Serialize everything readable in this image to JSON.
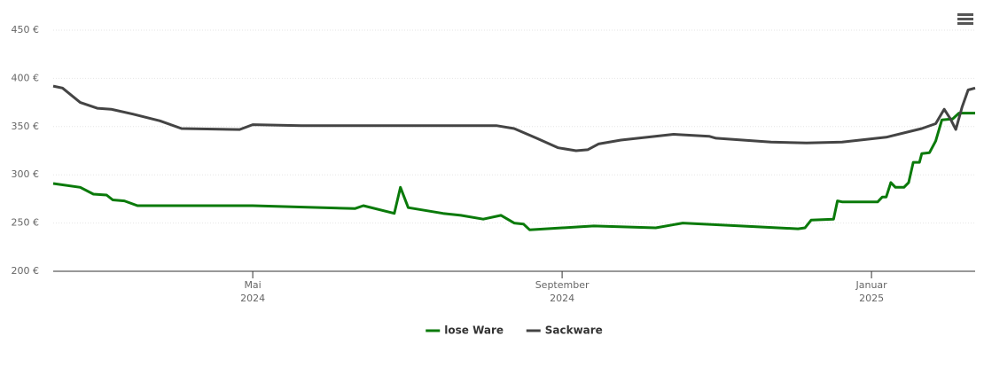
{
  "chart_data": {
    "type": "line",
    "xlim": [
      1.42,
      13.34
    ],
    "xticks": [
      {
        "value": 4,
        "label": "Mai",
        "year": "2024"
      },
      {
        "value": 8,
        "label": "September",
        "year": "2024"
      },
      {
        "value": 12,
        "label": "Januar",
        "year": "2025"
      }
    ],
    "ylim": [
      200,
      450
    ],
    "yticks": [
      {
        "value": 200,
        "label": "200 €"
      },
      {
        "value": 250,
        "label": "250 €"
      },
      {
        "value": 300,
        "label": "300 €"
      },
      {
        "value": 350,
        "label": "350 €"
      },
      {
        "value": 400,
        "label": "400 €"
      },
      {
        "value": 450,
        "label": "450 €"
      }
    ],
    "grid": true,
    "legend": "bottom",
    "series": [
      {
        "name": "lose Ware",
        "color": "#0a7a0a",
        "x": [
          1.42,
          1.77,
          1.94,
          2.11,
          2.19,
          2.34,
          2.51,
          4.0,
          5.32,
          5.43,
          5.83,
          5.91,
          6.01,
          6.46,
          6.69,
          6.98,
          7.21,
          7.38,
          7.5,
          7.58,
          8.0,
          8.41,
          9.21,
          9.56,
          11.05,
          11.14,
          11.22,
          11.51,
          11.56,
          11.62,
          12.08,
          12.14,
          12.19,
          12.25,
          12.31,
          12.42,
          12.48,
          12.54,
          12.62,
          12.65,
          12.75,
          12.83,
          12.91,
          13.05,
          13.13,
          13.34
        ],
        "values": [
          291,
          287,
          280,
          279,
          274,
          273,
          268,
          268,
          265,
          268,
          260,
          287,
          266,
          260,
          258,
          254,
          258,
          250,
          249,
          243,
          245,
          247,
          245,
          250,
          244,
          245,
          253,
          254,
          273,
          272,
          272,
          277,
          277,
          292,
          287,
          287,
          292,
          313,
          313,
          322,
          323,
          335,
          357,
          358,
          364,
          364
        ]
      },
      {
        "name": "Sackware",
        "color": "#444444",
        "x": [
          1.42,
          1.54,
          1.77,
          1.99,
          2.17,
          2.45,
          2.8,
          3.08,
          3.83,
          4.0,
          4.63,
          7.15,
          7.38,
          7.67,
          7.95,
          8.18,
          8.33,
          8.47,
          8.76,
          9.1,
          9.44,
          9.9,
          9.99,
          10.7,
          11.16,
          11.62,
          12.19,
          12.65,
          12.83,
          12.94,
          13.02,
          13.09,
          13.17,
          13.25,
          13.34
        ],
        "values": [
          392,
          390,
          375,
          369,
          368,
          363,
          356,
          348,
          347,
          352,
          351,
          351,
          348,
          338,
          328,
          325,
          326,
          332,
          336,
          339,
          342,
          340,
          338,
          334,
          333,
          334,
          339,
          348,
          353,
          368,
          358,
          347,
          370,
          388,
          390
        ]
      }
    ]
  }
}
